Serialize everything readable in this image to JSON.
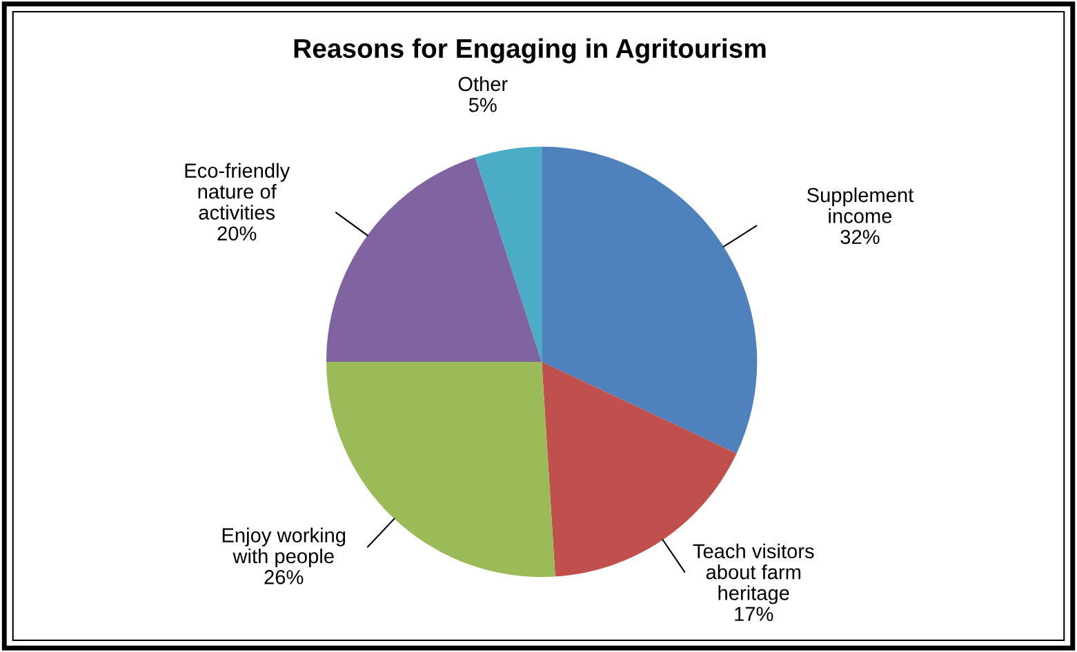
{
  "chart_data": {
    "type": "pie",
    "title": "Reasons for Engaging in Agritourism",
    "categories": [
      "Supplement\nincome",
      "Teach visitors\nabout farm\nheritage",
      "Enjoy working\nwith people",
      "Eco-friendly\nnature of\nactivities",
      "Other"
    ],
    "values": [
      32,
      17,
      26,
      20,
      5
    ],
    "value_labels": [
      "32%",
      "17%",
      "26%",
      "20%",
      "5%"
    ],
    "colors": [
      "#4f81bd",
      "#c0504d",
      "#9bbb59",
      "#8064a2",
      "#4bacc6"
    ]
  }
}
